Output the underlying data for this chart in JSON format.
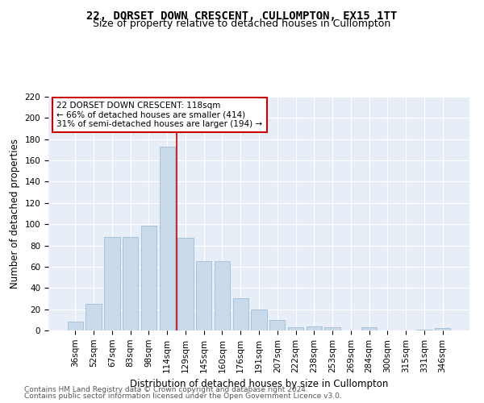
{
  "title": "22, DORSET DOWN CRESCENT, CULLOMPTON, EX15 1TT",
  "subtitle": "Size of property relative to detached houses in Cullompton",
  "xlabel": "Distribution of detached houses by size in Cullompton",
  "ylabel": "Number of detached properties",
  "bar_color": "#c9daea",
  "bar_edge_color": "#a0bcd8",
  "background_color": "#e8eef7",
  "categories": [
    "36sqm",
    "52sqm",
    "67sqm",
    "83sqm",
    "98sqm",
    "114sqm",
    "129sqm",
    "145sqm",
    "160sqm",
    "176sqm",
    "191sqm",
    "207sqm",
    "222sqm",
    "238sqm",
    "253sqm",
    "269sqm",
    "284sqm",
    "300sqm",
    "315sqm",
    "331sqm",
    "346sqm"
  ],
  "values": [
    8,
    25,
    88,
    88,
    99,
    173,
    87,
    65,
    65,
    30,
    20,
    10,
    3,
    4,
    3,
    0,
    3,
    0,
    0,
    1,
    2
  ],
  "vline_x": 5.5,
  "vline_color": "#cc0000",
  "ylim": [
    0,
    220
  ],
  "yticks": [
    0,
    20,
    40,
    60,
    80,
    100,
    120,
    140,
    160,
    180,
    200,
    220
  ],
  "annotation_line1": "22 DORSET DOWN CRESCENT: 118sqm",
  "annotation_line2": "← 66% of detached houses are smaller (414)",
  "annotation_line3": "31% of semi-detached houses are larger (194) →",
  "footer1": "Contains HM Land Registry data © Crown copyright and database right 2024.",
  "footer2": "Contains public sector information licensed under the Open Government Licence v3.0.",
  "title_fontsize": 10,
  "subtitle_fontsize": 9,
  "axis_label_fontsize": 8.5,
  "tick_fontsize": 7.5,
  "annotation_fontsize": 7.5,
  "footer_fontsize": 6.5
}
